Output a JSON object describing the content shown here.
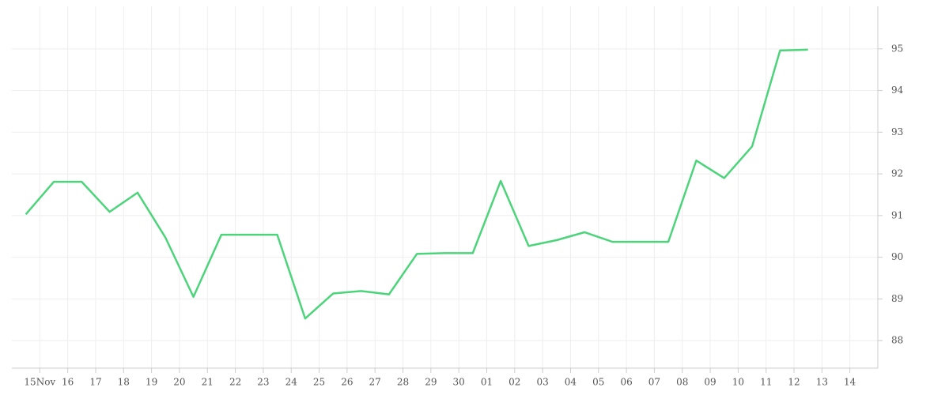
{
  "chart_data": {
    "type": "line",
    "x": [
      -0.5,
      0.5,
      1.5,
      2.5,
      3.5,
      4.5,
      5.5,
      6.5,
      7.5,
      8.5,
      9.5,
      10.5,
      11.5,
      12.5,
      13.5,
      14.5,
      15.5,
      16.5,
      17.5,
      18.5,
      19.5,
      20.5,
      21.5,
      22.5,
      23.5,
      24.5,
      25.5,
      26.5,
      27.5
    ],
    "series": [
      {
        "color": "#4cd47a",
        "values": [
          91.03,
          91.81,
          91.81,
          91.09,
          91.55,
          90.47,
          89.05,
          90.54,
          90.54,
          90.54,
          88.53,
          89.13,
          89.19,
          89.11,
          90.08,
          90.1,
          90.1,
          91.83,
          90.27,
          90.41,
          90.6,
          90.37,
          90.37,
          90.37,
          92.32,
          91.9,
          92.66,
          94.96,
          94.98
        ]
      }
    ],
    "xlim": [
      -1,
      30
    ],
    "xticks": [
      {
        "value": 0,
        "label": "15Nov"
      },
      {
        "value": 1,
        "label": "16"
      },
      {
        "value": 2,
        "label": "17"
      },
      {
        "value": 3,
        "label": "18"
      },
      {
        "value": 4,
        "label": "19"
      },
      {
        "value": 5,
        "label": "20"
      },
      {
        "value": 6,
        "label": "21"
      },
      {
        "value": 7,
        "label": "22"
      },
      {
        "value": 8,
        "label": "23"
      },
      {
        "value": 9,
        "label": "24"
      },
      {
        "value": 10,
        "label": "25"
      },
      {
        "value": 11,
        "label": "26"
      },
      {
        "value": 12,
        "label": "27"
      },
      {
        "value": 13,
        "label": "28"
      },
      {
        "value": 14,
        "label": "29"
      },
      {
        "value": 15,
        "label": "30"
      },
      {
        "value": 16,
        "label": "01"
      },
      {
        "value": 17,
        "label": "02"
      },
      {
        "value": 18,
        "label": "03"
      },
      {
        "value": 19,
        "label": "04"
      },
      {
        "value": 20,
        "label": "05"
      },
      {
        "value": 21,
        "label": "06"
      },
      {
        "value": 22,
        "label": "07"
      },
      {
        "value": 23,
        "label": "08"
      },
      {
        "value": 24,
        "label": "09"
      },
      {
        "value": 25,
        "label": "10"
      },
      {
        "value": 26,
        "label": "11"
      },
      {
        "value": 27,
        "label": "12"
      },
      {
        "value": 28,
        "label": "13"
      },
      {
        "value": 29,
        "label": "14"
      }
    ],
    "ylim": [
      87.34,
      96.02
    ],
    "yticks": [
      88,
      89,
      90,
      91,
      92,
      93,
      94,
      95
    ],
    "grid": true
  }
}
